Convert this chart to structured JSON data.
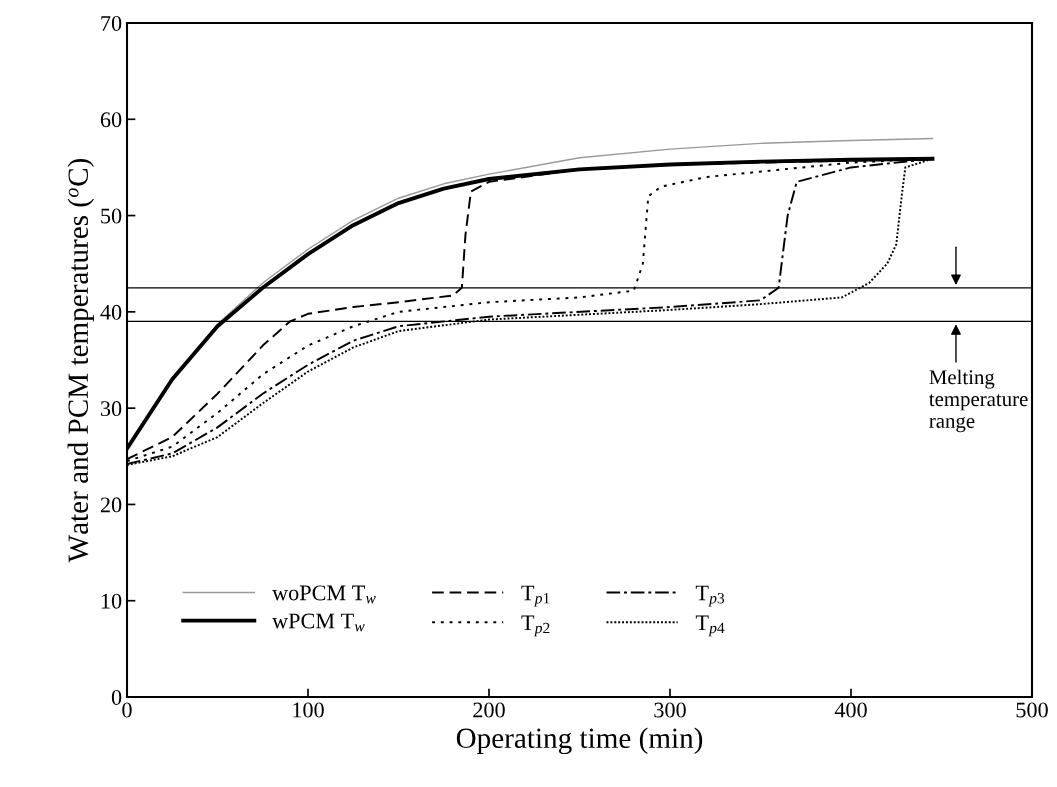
{
  "chart_data": {
    "type": "line",
    "xlabel": "Operating time (min)",
    "ylabel": "Water and PCM temperatures ($^{o}$C)",
    "xlim": [
      0,
      500
    ],
    "xticks": [
      0,
      100,
      200,
      300,
      400,
      500
    ],
    "ylim": [
      0,
      70
    ],
    "yticks": [
      0,
      10,
      20,
      30,
      40,
      50,
      60,
      70
    ],
    "grid": false,
    "legend": "bottom left",
    "marker": "none",
    "series": [
      {
        "name": "woPCM T$_{w}$",
        "color": "#999999",
        "line_style": "solid",
        "x": [
          0,
          25,
          50,
          75,
          100,
          125,
          150,
          175,
          200,
          250,
          300,
          350,
          400,
          445
        ],
        "values": [
          25.8,
          33,
          38.7,
          43,
          46.5,
          49.5,
          51.8,
          53.3,
          54.3,
          56,
          56.9,
          57.5,
          57.8,
          58
        ]
      },
      {
        "name": "wPCM T$_{w}$",
        "color": "#000000",
        "line_style": "solid",
        "x": [
          0,
          25,
          50,
          75,
          100,
          125,
          150,
          175,
          200,
          250,
          300,
          350,
          400,
          445
        ],
        "values": [
          25.8,
          33,
          38.5,
          42.5,
          46,
          49,
          51.3,
          52.8,
          53.8,
          54.8,
          55.3,
          55.6,
          55.8,
          55.9
        ]
      },
      {
        "name": "T$_{p1}$",
        "color": "#000000",
        "line_style": "dashed",
        "x": [
          0,
          25,
          50,
          75,
          90,
          100,
          125,
          150,
          180,
          185,
          187,
          190,
          200,
          250,
          300,
          400,
          445
        ],
        "values": [
          24.7,
          27,
          31.5,
          36.5,
          39,
          39.8,
          40.5,
          41,
          41.7,
          42.5,
          48,
          52.5,
          53.5,
          54.8,
          55.3,
          55.7,
          55.9
        ]
      },
      {
        "name": "T$_{p2}$",
        "color": "#000000",
        "line_style": "dotted",
        "x": [
          0,
          25,
          50,
          75,
          100,
          125,
          150,
          200,
          250,
          280,
          285,
          288,
          295,
          320,
          400,
          445
        ],
        "values": [
          24.5,
          26,
          29.5,
          33.5,
          36.5,
          38.5,
          40,
          41,
          41.5,
          42.2,
          45,
          52,
          53,
          54,
          55.5,
          55.9
        ]
      },
      {
        "name": "T$_{p3}$",
        "color": "#000000",
        "line_style": "dashdot",
        "x": [
          0,
          25,
          50,
          75,
          100,
          125,
          150,
          200,
          300,
          350,
          360,
          365,
          370,
          400,
          445
        ],
        "values": [
          24.2,
          25.3,
          28,
          31.5,
          34.5,
          37,
          38.5,
          39.5,
          40.5,
          41.2,
          42.5,
          50,
          53.5,
          55,
          55.9
        ]
      },
      {
        "name": "T$_{p4}$",
        "color": "#000000",
        "line_style": "densely dotted",
        "x": [
          0,
          25,
          50,
          75,
          100,
          125,
          150,
          200,
          300,
          350,
          395,
          410,
          420,
          425,
          428,
          430,
          445
        ],
        "values": [
          24.1,
          25,
          27,
          30.5,
          33.8,
          36.3,
          38,
          39.2,
          40.2,
          40.8,
          41.5,
          43,
          45,
          47,
          52,
          55,
          55.9
        ]
      }
    ],
    "ref_lines": [
      {
        "axis": "y",
        "value": 42.5,
        "color": "#000000"
      },
      {
        "axis": "y",
        "value": 39,
        "color": "#000000"
      }
    ],
    "annotations": [
      {
        "text": "Melting\ntemperature\nrange",
        "x": 458,
        "y": 39
      }
    ]
  }
}
